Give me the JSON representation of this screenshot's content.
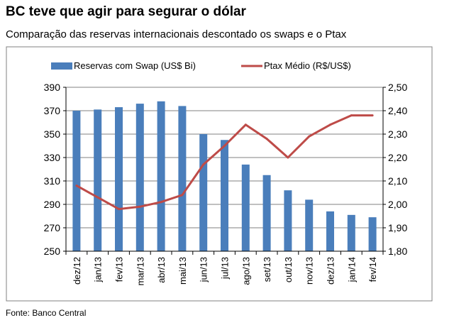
{
  "title": "BC teve que agir para segurar o dólar",
  "subtitle": "Comparação das reservas internacionais descontado os swaps e o Ptax",
  "source": "Fonte: Banco Central",
  "colors": {
    "bar": "#4a7ebb",
    "line": "#be4b48",
    "grid": "#808080"
  },
  "chart_data": {
    "type": "bar",
    "categories": [
      "dez/12",
      "jan/13",
      "fev/13",
      "mar/13",
      "abr/13",
      "mai/13",
      "jun/13",
      "jul/13",
      "ago/13",
      "set/13",
      "out/13",
      "nov/13",
      "dez/13",
      "jan/14",
      "fev/14"
    ],
    "series": [
      {
        "name": "Reservas com Swap (US$ Bi)",
        "type": "bar",
        "axis": "left",
        "values": [
          370,
          371,
          373,
          376,
          378,
          374,
          350,
          345,
          324,
          315,
          302,
          294,
          284,
          281,
          279
        ]
      },
      {
        "name": "Ptax Médio (R$/US$)",
        "type": "line",
        "axis": "right",
        "values": [
          2.08,
          2.03,
          1.98,
          1.99,
          2.01,
          2.04,
          2.17,
          2.25,
          2.34,
          2.28,
          2.2,
          2.29,
          2.34,
          2.38,
          2.38
        ]
      }
    ],
    "y_left": {
      "min": 250,
      "max": 390,
      "ticks": [
        "250",
        "270",
        "290",
        "310",
        "330",
        "350",
        "370",
        "390"
      ]
    },
    "y_right": {
      "min": 1.8,
      "max": 2.5,
      "ticks": [
        "1,80",
        "1,90",
        "2,00",
        "2,10",
        "2,20",
        "2,30",
        "2,40",
        "2,50"
      ]
    },
    "grid": true,
    "legend": "top"
  }
}
